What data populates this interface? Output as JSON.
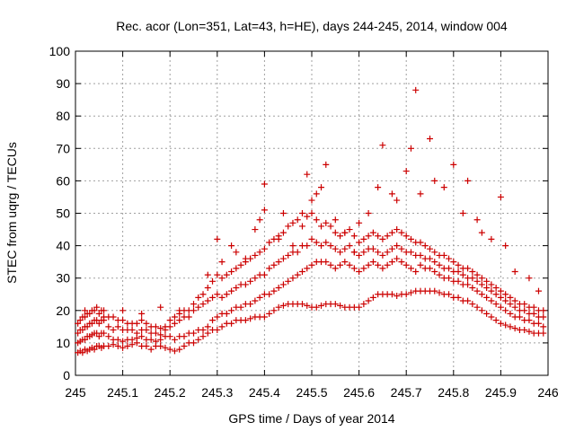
{
  "chart_data": {
    "type": "scatter",
    "title": "Rec. acor (Lon=351, Lat=43, h=HE), days 244-245, 2014, window 004",
    "xlabel": "GPS time / Days of year 2014",
    "ylabel": "STEC from uqrg / TECUs",
    "xlim": [
      245,
      246
    ],
    "ylim": [
      0,
      100
    ],
    "x_ticks": [
      245,
      245.1,
      245.2,
      245.3,
      245.4,
      245.5,
      245.6,
      245.7,
      245.8,
      245.9,
      246
    ],
    "x_tick_labels": [
      "245",
      "245.1",
      "245.2",
      "245.3",
      "245.4",
      "245.5",
      "245.6",
      "245.7",
      "245.8",
      "245.9",
      "246"
    ],
    "y_ticks": [
      0,
      10,
      20,
      30,
      40,
      50,
      60,
      70,
      80,
      90,
      100
    ],
    "y_tick_labels": [
      "0",
      "10",
      "20",
      "30",
      "40",
      "50",
      "60",
      "70",
      "80",
      "90",
      "100"
    ],
    "grid": true,
    "marker": "+",
    "marker_color": "#cc0000",
    "series": [
      {
        "x": [
          245.005,
          245.01,
          245.015,
          245.02,
          245.025,
          245.03,
          245.035,
          245.04,
          245.045,
          245.05,
          245.055,
          245.06,
          245.07,
          245.08,
          245.09,
          245.1,
          245.11,
          245.12,
          245.13,
          245.14,
          245.15,
          245.16,
          245.17,
          245.18,
          245.19,
          245.2,
          245.21,
          245.22,
          245.23,
          245.24,
          245.25,
          245.26,
          245.27,
          245.28,
          245.29,
          245.3,
          245.31,
          245.32,
          245.33,
          245.34,
          245.35,
          245.36,
          245.37,
          245.38,
          245.39,
          245.4,
          245.41,
          245.42,
          245.43,
          245.44,
          245.45,
          245.46,
          245.47,
          245.48,
          245.49,
          245.5,
          245.51,
          245.52,
          245.53,
          245.54,
          245.55,
          245.56,
          245.57,
          245.58,
          245.59,
          245.6,
          245.61,
          245.62,
          245.63,
          245.64,
          245.65,
          245.66,
          245.67,
          245.68,
          245.69,
          245.7,
          245.71,
          245.72,
          245.73,
          245.74,
          245.75,
          245.76,
          245.77,
          245.78,
          245.79,
          245.8,
          245.81,
          245.82,
          245.83,
          245.84,
          245.85,
          245.86,
          245.87,
          245.88,
          245.89,
          245.9,
          245.91,
          245.92,
          245.93,
          245.94,
          245.95,
          245.96,
          245.97,
          245.98,
          245.99
        ],
        "y": [
          7,
          7.5,
          7,
          8,
          7.5,
          8,
          8.5,
          8,
          9,
          9,
          8.5,
          9,
          9,
          9.5,
          9,
          8.5,
          9,
          9.5,
          10,
          9,
          9,
          8,
          9,
          9,
          8.5,
          8,
          7.5,
          8,
          9,
          10,
          10,
          11,
          12,
          13,
          14,
          14,
          15,
          16,
          16,
          17,
          17,
          17,
          17.5,
          18,
          18,
          18,
          19,
          20,
          21,
          21.5,
          22,
          22,
          22,
          22,
          21.5,
          21,
          21,
          21.5,
          22,
          22,
          22,
          21.5,
          21,
          21,
          21,
          21,
          22,
          23,
          24,
          25,
          25,
          25,
          25,
          24.5,
          25,
          25,
          25.5,
          26,
          26,
          26,
          26,
          26,
          25.5,
          25,
          25,
          24,
          24,
          23,
          23,
          22,
          21,
          20,
          19,
          18,
          17,
          16,
          15.5,
          15,
          14.5,
          14,
          14,
          13.5,
          13,
          13,
          13
        ]
      },
      {
        "x": [
          245.005,
          245.01,
          245.015,
          245.02,
          245.025,
          245.03,
          245.035,
          245.04,
          245.045,
          245.05,
          245.055,
          245.06,
          245.07,
          245.08,
          245.09,
          245.1,
          245.11,
          245.12,
          245.13,
          245.14,
          245.15,
          245.16,
          245.17,
          245.18,
          245.19,
          245.2,
          245.21,
          245.22,
          245.23,
          245.24,
          245.25,
          245.26,
          245.27,
          245.28,
          245.29,
          245.3,
          245.31,
          245.32,
          245.33,
          245.34,
          245.35,
          245.36,
          245.37,
          245.38,
          245.39,
          245.4,
          245.41,
          245.42,
          245.43,
          245.44,
          245.45,
          245.46,
          245.47,
          245.48,
          245.49,
          245.5,
          245.51,
          245.52,
          245.53,
          245.54,
          245.55,
          245.56,
          245.57,
          245.58,
          245.59,
          245.6,
          245.61,
          245.62,
          245.63,
          245.64,
          245.65,
          245.66,
          245.67,
          245.68,
          245.69,
          245.7,
          245.71,
          245.72,
          245.73,
          245.74,
          245.75,
          245.76,
          245.77,
          245.78,
          245.79,
          245.8,
          245.81,
          245.82,
          245.83,
          245.84,
          245.85,
          245.86,
          245.87,
          245.88,
          245.89,
          245.9,
          245.91,
          245.92,
          245.93,
          245.94,
          245.95,
          245.96,
          245.97,
          245.98,
          245.99
        ],
        "y": [
          10,
          10.5,
          11,
          11,
          12,
          12,
          12.5,
          13,
          13,
          12,
          13,
          13,
          12,
          11,
          11,
          10.5,
          11,
          11,
          11.5,
          12,
          11,
          11,
          10.5,
          11,
          12,
          12,
          11,
          12,
          12,
          13,
          13,
          14,
          14,
          15,
          17,
          18,
          19,
          19,
          20,
          21,
          21,
          22,
          22,
          23,
          24,
          25,
          25,
          26,
          27,
          28,
          29,
          30,
          31,
          32,
          33,
          34,
          35,
          35,
          35,
          34,
          33,
          34,
          35,
          34,
          33,
          32,
          33,
          34,
          35,
          34,
          33,
          34,
          35,
          36,
          35,
          34,
          33,
          32,
          34,
          33,
          33,
          32,
          31,
          30,
          30,
          29,
          29,
          28,
          28,
          27,
          26,
          25,
          24,
          23,
          22,
          21,
          20,
          19,
          18,
          18,
          17,
          17,
          16,
          16,
          15
        ]
      },
      {
        "x": [
          245.005,
          245.01,
          245.015,
          245.02,
          245.025,
          245.03,
          245.035,
          245.04,
          245.045,
          245.05,
          245.055,
          245.06,
          245.07,
          245.08,
          245.09,
          245.1,
          245.11,
          245.12,
          245.13,
          245.14,
          245.15,
          245.16,
          245.17,
          245.18,
          245.19,
          245.2,
          245.21,
          245.22,
          245.23,
          245.24,
          245.25,
          245.26,
          245.27,
          245.28,
          245.29,
          245.3,
          245.31,
          245.32,
          245.33,
          245.34,
          245.35,
          245.36,
          245.37,
          245.38,
          245.39,
          245.4,
          245.41,
          245.42,
          245.43,
          245.44,
          245.45,
          245.46,
          245.47,
          245.48,
          245.49,
          245.5,
          245.51,
          245.52,
          245.53,
          245.54,
          245.55,
          245.56,
          245.57,
          245.58,
          245.59,
          245.6,
          245.61,
          245.62,
          245.63,
          245.64,
          245.65,
          245.66,
          245.67,
          245.68,
          245.69,
          245.7,
          245.71,
          245.72,
          245.73,
          245.74,
          245.75,
          245.76,
          245.77,
          245.78,
          245.79,
          245.8,
          245.81,
          245.82,
          245.83,
          245.84,
          245.85,
          245.86,
          245.87,
          245.88,
          245.89,
          245.9,
          245.91,
          245.92,
          245.93,
          245.94,
          245.95,
          245.96,
          245.97,
          245.98,
          245.99
        ],
        "y": [
          13,
          14,
          14,
          15,
          15,
          16,
          16,
          17,
          17,
          16,
          17,
          17,
          15,
          14,
          15,
          14,
          14,
          14,
          13,
          14,
          14,
          13,
          13,
          12.5,
          14,
          15,
          16,
          17,
          18,
          18,
          20,
          21,
          22,
          23,
          24,
          25,
          24,
          25,
          26,
          27,
          28,
          28,
          29,
          30,
          31,
          31,
          33,
          34,
          35,
          36,
          37,
          38,
          38,
          40,
          40,
          42,
          41,
          40,
          41,
          40,
          39,
          38,
          39,
          40,
          38,
          37,
          38,
          39,
          39,
          38,
          37,
          38,
          39,
          40,
          39,
          38,
          38,
          37,
          37,
          36,
          36,
          35,
          34,
          33,
          33,
          32,
          32,
          31,
          30,
          30,
          29,
          28,
          27,
          26,
          25,
          24,
          23,
          22,
          21,
          20,
          20,
          19,
          19,
          18,
          18
        ]
      },
      {
        "x": [
          245.005,
          245.01,
          245.015,
          245.02,
          245.025,
          245.03,
          245.035,
          245.04,
          245.045,
          245.05,
          245.055,
          245.06,
          245.07,
          245.08,
          245.09,
          245.1,
          245.11,
          245.12,
          245.13,
          245.14,
          245.15,
          245.16,
          245.17,
          245.18,
          245.19,
          245.2,
          245.21,
          245.22,
          245.23,
          245.24,
          245.25,
          245.26,
          245.27,
          245.28,
          245.29,
          245.3,
          245.31,
          245.32,
          245.33,
          245.34,
          245.35,
          245.36,
          245.37,
          245.38,
          245.39,
          245.4,
          245.41,
          245.42,
          245.43,
          245.44,
          245.45,
          245.46,
          245.47,
          245.48,
          245.49,
          245.5,
          245.51,
          245.52,
          245.53,
          245.54,
          245.55,
          245.56,
          245.57,
          245.58,
          245.59,
          245.6,
          245.61,
          245.62,
          245.63,
          245.64,
          245.65,
          245.66,
          245.67,
          245.68,
          245.69,
          245.7,
          245.71,
          245.72,
          245.73,
          245.74,
          245.75,
          245.76,
          245.77,
          245.78,
          245.79,
          245.8,
          245.81,
          245.82,
          245.83,
          245.84,
          245.85,
          245.86,
          245.87,
          245.88,
          245.89,
          245.9,
          245.91,
          245.92,
          245.93,
          245.94,
          245.95,
          245.96,
          245.97,
          245.98,
          245.99
        ],
        "y": [
          16,
          17,
          18,
          18,
          19,
          19,
          20,
          20,
          21,
          19,
          20,
          20,
          18,
          18,
          17,
          17,
          16,
          16,
          16,
          17,
          16,
          15,
          15,
          14.5,
          15,
          17,
          18,
          19,
          20,
          20,
          22,
          24,
          25,
          27,
          29,
          31,
          30,
          31,
          32,
          33,
          34,
          35,
          36,
          37,
          38,
          39,
          41,
          42,
          43,
          44,
          46,
          47,
          48,
          50,
          49,
          50,
          48,
          46,
          47,
          46,
          44,
          43,
          44,
          45,
          43,
          41,
          42,
          43,
          44,
          43,
          42,
          43,
          44,
          45,
          44,
          43,
          42,
          41,
          41,
          40,
          39,
          38,
          37,
          37,
          36,
          35,
          34,
          33,
          33,
          32,
          31,
          30,
          29,
          28,
          27,
          26,
          25,
          24,
          23,
          22,
          22,
          21,
          21,
          20,
          20
        ]
      },
      {
        "x": [
          245.02,
          245.06,
          245.1,
          245.14,
          245.18,
          245.22,
          245.28,
          245.3,
          245.31,
          245.33,
          245.34,
          245.36,
          245.38,
          245.39,
          245.4,
          245.4,
          245.43,
          245.44,
          245.46,
          245.48,
          245.49,
          245.5,
          245.51,
          245.52,
          245.53,
          245.55,
          245.57,
          245.59,
          245.6,
          245.62,
          245.64,
          245.65,
          245.67,
          245.68,
          245.7,
          245.71,
          245.72,
          245.73,
          245.75,
          245.76,
          245.78,
          245.8,
          245.82,
          245.83,
          245.85,
          245.86,
          245.88,
          245.9,
          245.91,
          245.93,
          245.96,
          245.98
        ],
        "y": [
          20,
          18,
          20,
          19,
          21,
          20,
          31,
          42,
          35,
          40,
          38,
          36,
          45,
          48,
          59,
          51,
          42,
          50,
          40,
          46,
          62,
          54,
          56,
          58,
          65,
          48,
          44,
          38,
          47,
          50,
          58,
          71,
          56,
          54,
          63,
          70,
          88,
          56,
          73,
          60,
          58,
          65,
          50,
          60,
          48,
          44,
          42,
          55,
          40,
          32,
          30,
          26
        ]
      }
    ]
  }
}
